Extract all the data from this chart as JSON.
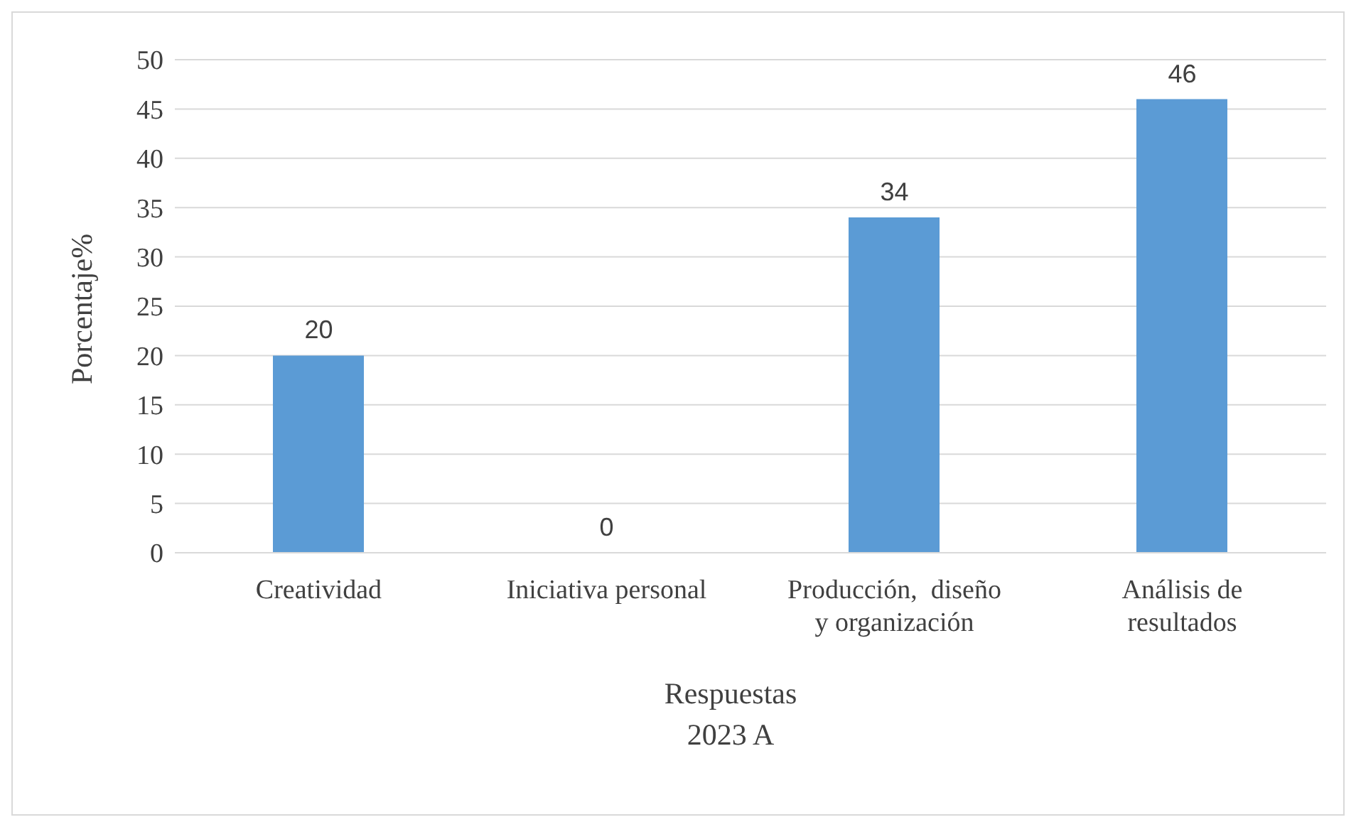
{
  "chart_data": {
    "type": "bar",
    "xlabel": "Respuestas\n2023 A",
    "ylabel": "Porcentaje%",
    "categories": [
      "Creatividad",
      "Iniciativa personal",
      "Producción,  diseño y organización",
      "Análisis de resultados"
    ],
    "values": [
      20,
      0,
      34,
      46
    ],
    "color": "#5b9bd5",
    "data_labels": true,
    "ylim": [
      0,
      50
    ],
    "yticks": [
      0,
      5,
      10,
      15,
      20,
      25,
      30,
      35,
      40,
      45,
      50
    ],
    "grid": "y",
    "legend": false
  }
}
